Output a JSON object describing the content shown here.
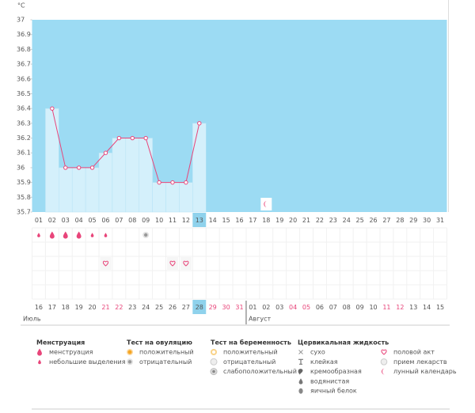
{
  "y_unit": "°C",
  "chart_data": {
    "type": "line",
    "categories": [
      "01",
      "02",
      "03",
      "04",
      "05",
      "06",
      "07",
      "08",
      "09",
      "10",
      "11",
      "12",
      "13",
      "14",
      "15",
      "16",
      "17",
      "18",
      "19",
      "20",
      "21",
      "22",
      "23",
      "24",
      "25",
      "26",
      "27",
      "28",
      "29",
      "30",
      "31"
    ],
    "values": [
      null,
      36.4,
      36,
      36,
      36,
      36.1,
      36.2,
      36.2,
      36.2,
      35.9,
      35.9,
      35.9,
      36.3,
      null,
      null,
      null,
      null,
      null,
      null,
      null,
      null,
      null,
      null,
      null,
      null,
      null,
      null,
      null,
      null,
      null,
      null
    ],
    "ylim": [
      35.7,
      37
    ],
    "yticks": [
      35.7,
      35.8,
      35.9,
      36,
      36.1,
      36.2,
      36.3,
      36.4,
      36.5,
      36.6,
      36.7,
      36.8,
      36.9,
      37
    ],
    "highlight_index": 12,
    "colors": {
      "line": "#e8457a",
      "bar": "#d4f0fb",
      "background": "#9cdbf3",
      "highlight": "#8fd2ec"
    }
  },
  "markers": {
    "menstruation": [
      {
        "day": 0,
        "kind": "drop-small"
      },
      {
        "day": 1,
        "kind": "drop"
      },
      {
        "day": 2,
        "kind": "drop"
      },
      {
        "day": 3,
        "kind": "drop"
      },
      {
        "day": 4,
        "kind": "drop-small"
      },
      {
        "day": 5,
        "kind": "drop-small"
      }
    ],
    "ovulation_test": [
      {
        "day": 8,
        "kind": "ovu-negative"
      }
    ],
    "intercourse": [
      5,
      10,
      11
    ],
    "moon": [
      17
    ]
  },
  "calendar": {
    "dates": [
      {
        "label": "16"
      },
      {
        "label": "17"
      },
      {
        "label": "18"
      },
      {
        "label": "19"
      },
      {
        "label": "20"
      },
      {
        "label": "21",
        "red": true
      },
      {
        "label": "22",
        "red": true
      },
      {
        "label": "23"
      },
      {
        "label": "24"
      },
      {
        "label": "25"
      },
      {
        "label": "26"
      },
      {
        "label": "27"
      },
      {
        "label": "28"
      },
      {
        "label": "29",
        "red": true
      },
      {
        "label": "30",
        "red": true
      },
      {
        "label": "31",
        "red": true
      },
      {
        "label": "01"
      },
      {
        "label": "02"
      },
      {
        "label": "03"
      },
      {
        "label": "04",
        "red": true
      },
      {
        "label": "05",
        "red": true
      },
      {
        "label": "06"
      },
      {
        "label": "07"
      },
      {
        "label": "08"
      },
      {
        "label": "09"
      },
      {
        "label": "10"
      },
      {
        "label": "11",
        "red": true
      },
      {
        "label": "12",
        "red": true
      },
      {
        "label": "13"
      },
      {
        "label": "14"
      },
      {
        "label": "15"
      }
    ],
    "highlight_index": 12,
    "months": [
      {
        "name": "Июль",
        "start": 0
      },
      {
        "name": "Август",
        "start": 16
      }
    ]
  },
  "legend": [
    {
      "title": "Менструация",
      "items": [
        {
          "icon": "drop",
          "label": "менструация"
        },
        {
          "icon": "drop-small",
          "label": "небольшие выделения"
        }
      ]
    },
    {
      "title": "Тест на овуляцию",
      "items": [
        {
          "icon": "ovu-positive",
          "label": "положительный"
        },
        {
          "icon": "ovu-negative",
          "label": "отрицательный"
        }
      ]
    },
    {
      "title": "Тест на беременность",
      "items": [
        {
          "icon": "preg-positive",
          "label": "положительный"
        },
        {
          "icon": "preg-negative",
          "label": "отрицательный"
        },
        {
          "icon": "preg-weak",
          "label": "слабоположительный"
        }
      ]
    },
    {
      "title": "Цервикальная жидкость",
      "items": [
        {
          "icon": "dry",
          "label": "сухо"
        },
        {
          "icon": "sticky",
          "label": "клейкая"
        },
        {
          "icon": "creamy",
          "label": "кремообразная"
        },
        {
          "icon": "watery",
          "label": "водянистая"
        },
        {
          "icon": "eggwhite",
          "label": "яичный белок"
        }
      ]
    },
    {
      "title": null,
      "items": [
        {
          "icon": "heart",
          "label": "половой акт"
        },
        {
          "icon": "pill",
          "label": "прием лекарств"
        },
        {
          "icon": "moon",
          "label": "лунный календарь"
        }
      ]
    }
  ]
}
